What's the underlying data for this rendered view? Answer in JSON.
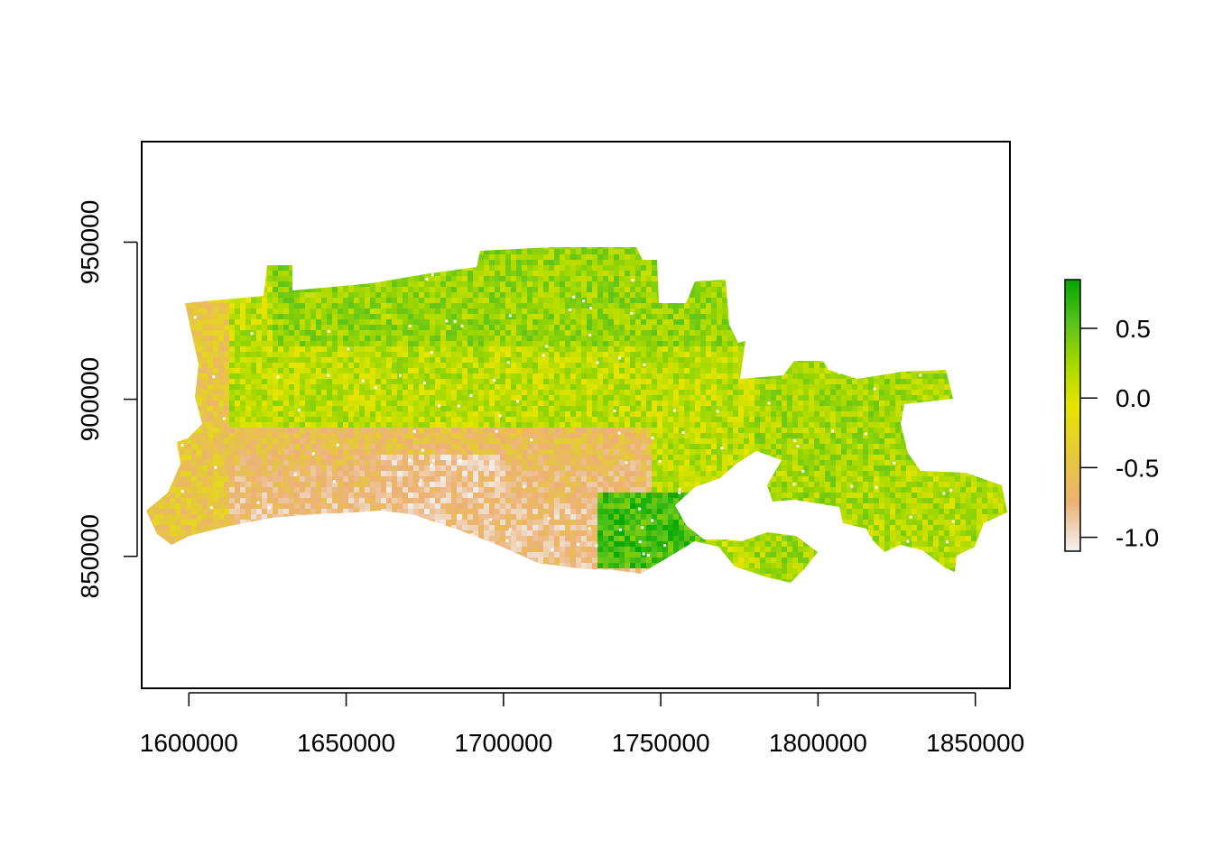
{
  "chart_data": {
    "type": "heatmap",
    "title": "",
    "xlabel": "",
    "ylabel": "",
    "xlim": [
      1585000,
      1861000
    ],
    "ylim": [
      808000,
      982000
    ],
    "x_ticks": [
      {
        "value": 1600000,
        "label": "1600000"
      },
      {
        "value": 1650000,
        "label": "1650000"
      },
      {
        "value": 1700000,
        "label": "1700000"
      },
      {
        "value": 1750000,
        "label": "1750000"
      },
      {
        "value": 1800000,
        "label": "1800000"
      },
      {
        "value": 1850000,
        "label": "1850000"
      }
    ],
    "y_ticks": [
      {
        "value": 850000,
        "label": "850000"
      },
      {
        "value": 900000,
        "label": "900000"
      },
      {
        "value": 950000,
        "label": "950000"
      }
    ],
    "legend": {
      "placement": "right",
      "min": -1.1,
      "max": 0.85,
      "ticks": [
        {
          "value": 0.5,
          "label": "0.5"
        },
        {
          "value": 0.0,
          "label": "0.0"
        },
        {
          "value": -0.5,
          "label": "-0.5"
        },
        {
          "value": -1.0,
          "label": "-1.0"
        }
      ]
    },
    "color_scale": [
      {
        "value": -1.1,
        "color": "#F2F2F2"
      },
      {
        "value": -0.75,
        "color": "#ECB176"
      },
      {
        "value": -0.45,
        "color": "#E6C640"
      },
      {
        "value": -0.05,
        "color": "#E5E500"
      },
      {
        "value": 0.25,
        "color": "#A6D900"
      },
      {
        "value": 0.55,
        "color": "#57C21C"
      },
      {
        "value": 0.85,
        "color": "#00A600"
      }
    ]
  }
}
